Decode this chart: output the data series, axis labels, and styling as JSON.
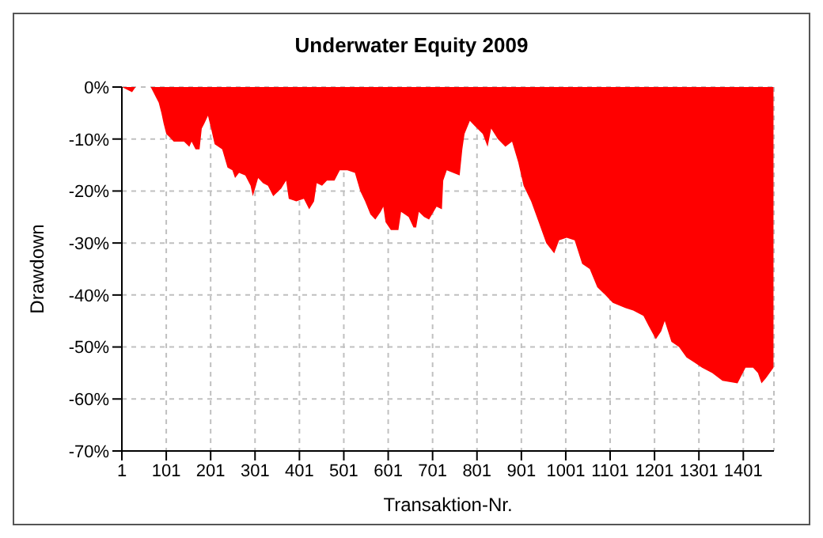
{
  "chart_data": {
    "type": "area",
    "title": "Underwater Equity 2009",
    "xlabel": "Transaktion-Nr.",
    "ylabel": "Drawdown",
    "x": [
      1,
      24,
      32,
      66,
      78,
      84,
      90,
      95,
      101,
      107,
      118,
      141,
      153,
      158,
      167,
      176,
      181,
      187,
      195,
      202,
      210,
      227,
      239,
      250,
      256,
      265,
      279,
      291,
      296,
      308,
      319,
      330,
      342,
      360,
      371,
      377,
      394,
      411,
      423,
      434,
      440,
      452,
      463,
      480,
      492,
      509,
      526,
      538,
      549,
      561,
      572,
      584,
      590,
      595,
      607,
      624,
      630,
      647,
      658,
      664,
      670,
      682,
      693,
      710,
      722,
      725,
      733,
      762,
      768,
      773,
      785,
      796,
      814,
      825,
      833,
      848,
      865,
      880,
      894,
      906,
      923,
      940,
      957,
      975,
      986,
      1003,
      1021,
      1038,
      1055,
      1072,
      1090,
      1107,
      1135,
      1153,
      1176,
      1188,
      1204,
      1216,
      1224,
      1239,
      1256,
      1273,
      1291,
      1308,
      1331,
      1354,
      1388,
      1406,
      1423,
      1434,
      1442,
      1452,
      1469
    ],
    "series": [
      {
        "color": "#ff0000",
        "values": [
          0,
          -1,
          0,
          0,
          -2,
          -3,
          -5,
          -7,
          -9,
          -9.5,
          -10.5,
          -10.5,
          -11.5,
          -10.5,
          -12,
          -12,
          -8,
          -7,
          -5.5,
          -8,
          -11,
          -12,
          -15.5,
          -16,
          -17.5,
          -16.5,
          -17,
          -19,
          -21,
          -17.5,
          -18.5,
          -19,
          -21,
          -19.5,
          -18,
          -21.5,
          -22,
          -21.5,
          -23.5,
          -22,
          -18.5,
          -19,
          -18,
          -18,
          -16,
          -16,
          -16.5,
          -20,
          -22,
          -24.5,
          -25.5,
          -24,
          -23,
          -26,
          -27.5,
          -27.5,
          -24,
          -25,
          -27,
          -27,
          -24,
          -25,
          -25.5,
          -23,
          -23.5,
          -18,
          -16,
          -17,
          -12,
          -9,
          -6.5,
          -7.5,
          -9,
          -11.5,
          -8,
          -10,
          -11.5,
          -10.5,
          -14.5,
          -19,
          -22,
          -26,
          -30,
          -32,
          -29.5,
          -29,
          -29.5,
          -34,
          -35,
          -38.5,
          -40,
          -41.5,
          -42.5,
          -43,
          -44,
          -46,
          -48.5,
          -47,
          -45,
          -49,
          -50,
          -52,
          -53,
          -54,
          -55,
          -56.5,
          -57,
          -54,
          -54,
          -55,
          -57,
          -56,
          -54
        ]
      }
    ],
    "xlim": [
      1,
      1470
    ],
    "xticks": [
      1,
      101,
      201,
      301,
      401,
      501,
      601,
      701,
      801,
      901,
      1001,
      1101,
      1201,
      1301,
      1401
    ],
    "ylim": [
      -70,
      0
    ],
    "yticks": [
      {
        "value": -70,
        "label": "-70%"
      },
      {
        "value": -60,
        "label": "-60%"
      },
      {
        "value": -50,
        "label": "-50%"
      },
      {
        "value": -40,
        "label": "-40%"
      },
      {
        "value": -30,
        "label": "-30%"
      },
      {
        "value": -20,
        "label": "-20%"
      },
      {
        "value": -10,
        "label": "-10%"
      },
      {
        "value": 0,
        "label": "0%"
      }
    ],
    "grid": true
  }
}
